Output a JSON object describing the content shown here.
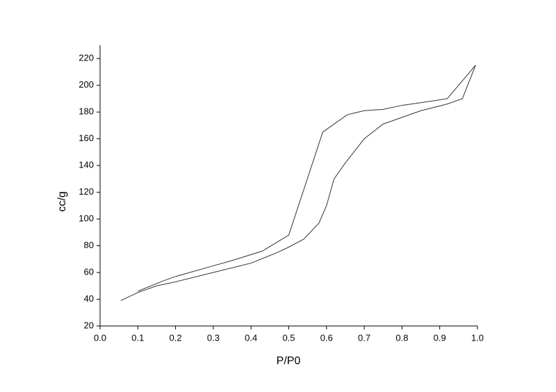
{
  "chart_data": {
    "type": "line",
    "xlabel": "P/P0",
    "ylabel": "cc/g",
    "series": [
      {
        "color": "#333333",
        "x": [
          0.055,
          0.1,
          0.15,
          0.2,
          0.3,
          0.4,
          0.47,
          0.5,
          0.54,
          0.58,
          0.6,
          0.62,
          0.65,
          0.7,
          0.75,
          0.8,
          0.85,
          0.92,
          0.96,
          0.995
        ],
        "values": [
          39,
          45,
          50,
          53,
          60,
          67,
          75,
          79,
          85,
          97,
          110,
          130,
          142,
          160,
          171,
          176,
          181,
          186,
          190,
          215
        ]
      },
      {
        "color": "#333333",
        "x": [
          0.995,
          0.92,
          0.85,
          0.8,
          0.75,
          0.7,
          0.655,
          0.59,
          0.5,
          0.43,
          0.35,
          0.3,
          0.2,
          0.17,
          0.1
        ],
        "values": [
          215,
          190,
          187,
          185,
          182,
          181,
          178,
          165,
          88,
          76,
          69,
          65,
          57,
          54,
          46
        ]
      }
    ],
    "xlim": [
      0,
      1
    ],
    "xticks": [
      {
        "value": 0,
        "label": "0.0"
      },
      0.1,
      0.2,
      0.3,
      0.4,
      0.5,
      0.6,
      0.7,
      0.8,
      0.9,
      {
        "value": 1,
        "label": "1.0"
      }
    ],
    "ylim": [
      20,
      230
    ],
    "yticks": [
      20,
      40,
      60,
      80,
      100,
      120,
      140,
      160,
      180,
      200,
      220
    ],
    "grid": false
  }
}
